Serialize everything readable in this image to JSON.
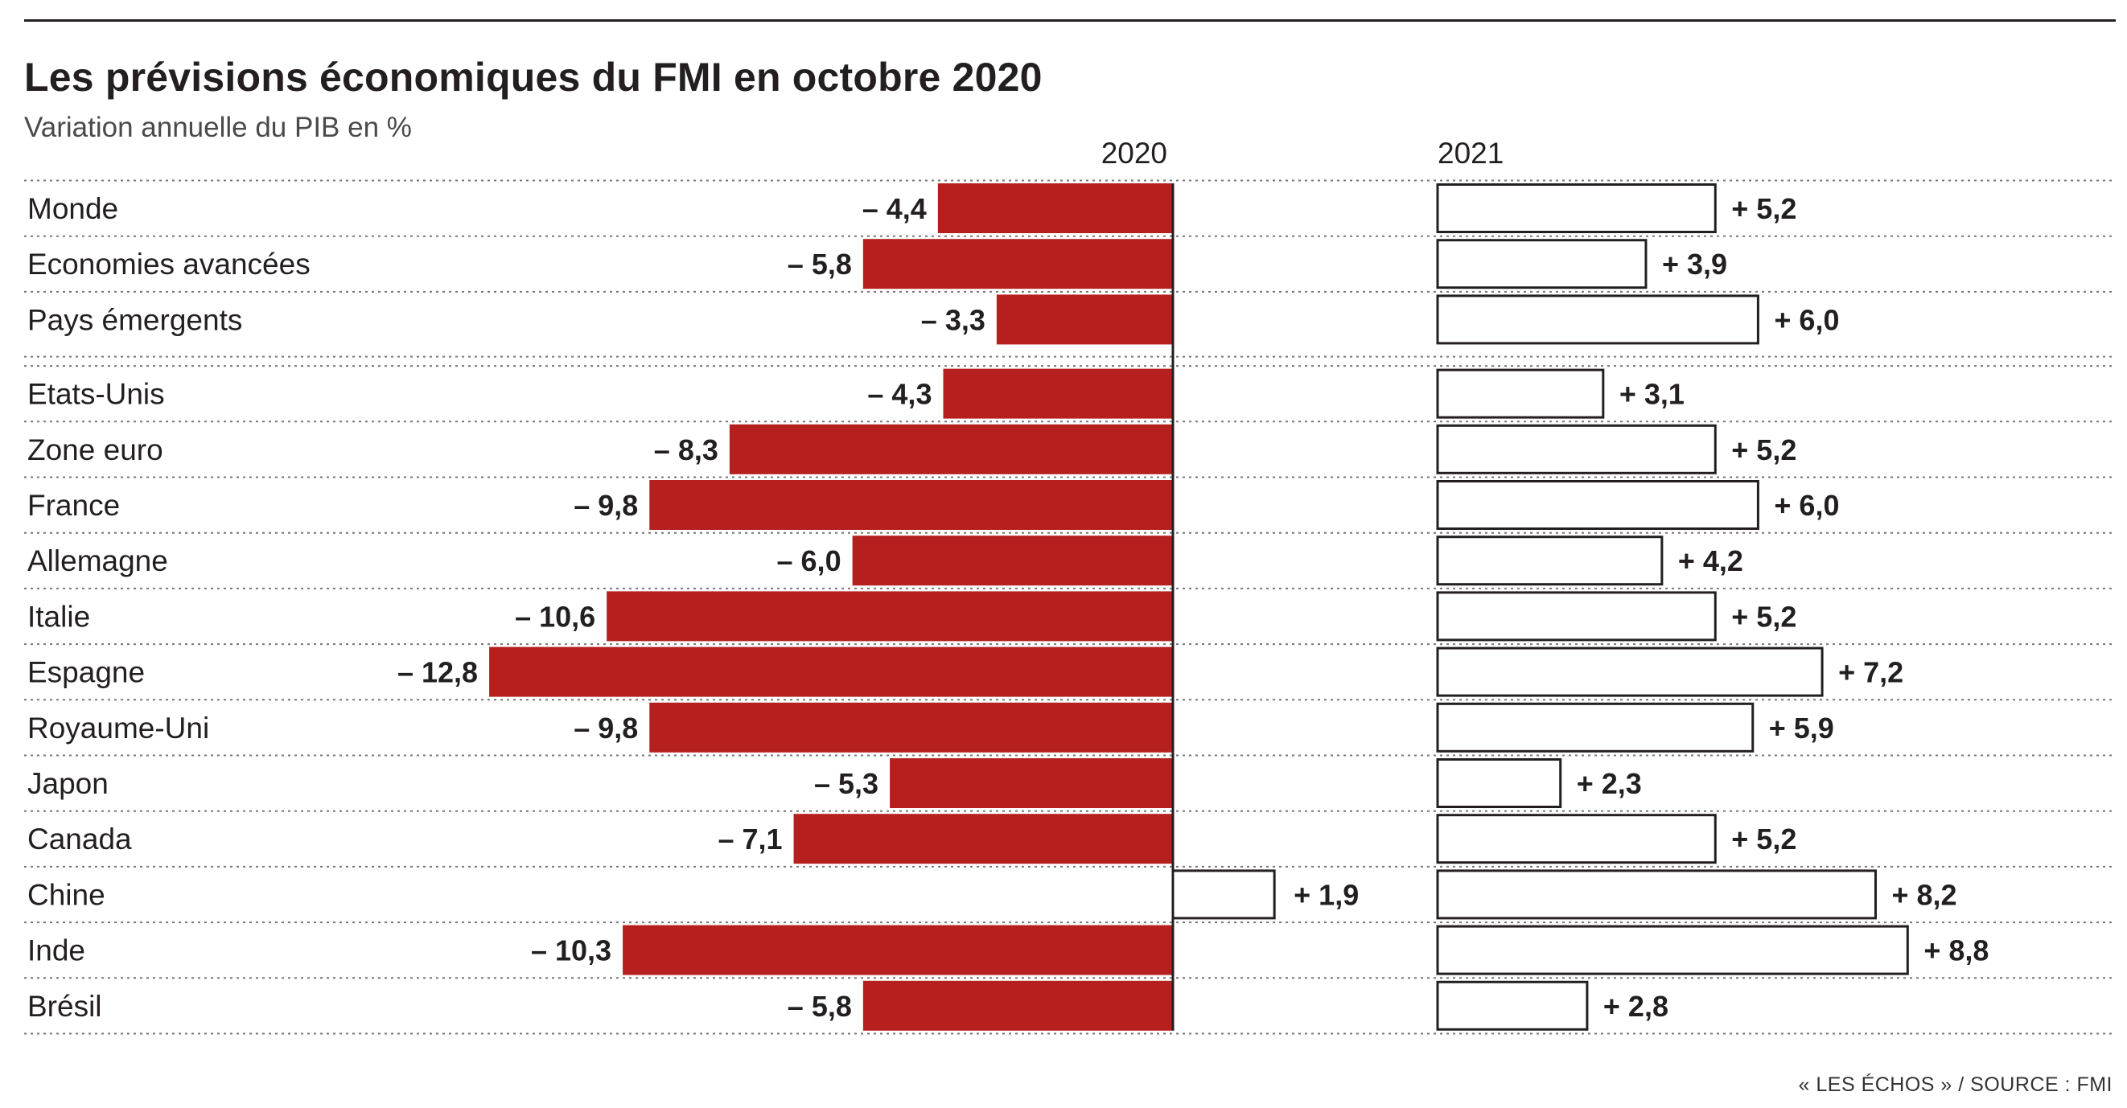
{
  "colors": {
    "bar_2020": "#b5201f",
    "bar_2021_fill": "#ffffff",
    "bar_outline": "#231f20",
    "text": "#231f20",
    "gridline": "#777777"
  },
  "chart_data": {
    "type": "bar",
    "orientation": "horizontal",
    "title": "Les prévisions économiques du FMI en octobre 2020",
    "subtitle": "Variation annuelle du PIB en %",
    "source": "« LES ÉCHOS » / SOURCE : FMI",
    "categories": [
      "Monde",
      "Economies avancées",
      "Pays émergents",
      "Etats-Unis",
      "Zone euro",
      "France",
      "Allemagne",
      "Italie",
      "Espagne",
      "Royaume-Uni",
      "Japon",
      "Canada",
      "Chine",
      "Inde",
      "Brésil"
    ],
    "groups": [
      3,
      12
    ],
    "series": [
      {
        "name": "2020",
        "values": [
          -4.4,
          -5.8,
          -3.3,
          -4.3,
          -8.3,
          -9.8,
          -6.0,
          -10.6,
          -12.8,
          -9.8,
          -5.3,
          -7.1,
          1.9,
          -10.3,
          -5.8
        ],
        "labels": [
          "– 4,4",
          "– 5,8",
          "– 3,3",
          "– 4,3",
          "– 8,3",
          "– 9,8",
          "– 6,0",
          "– 10,6",
          "– 12,8",
          "– 9,8",
          "– 5,3",
          "– 7,1",
          "+ 1,9",
          "– 10,3",
          "– 5,8"
        ]
      },
      {
        "name": "2021",
        "values": [
          5.2,
          3.9,
          6.0,
          3.1,
          5.2,
          6.0,
          4.2,
          5.2,
          7.2,
          5.9,
          2.3,
          5.2,
          8.2,
          8.8,
          2.8
        ],
        "labels": [
          "+ 5,2",
          "+ 3,9",
          "+ 6,0",
          "+ 3,1",
          "+ 5,2",
          "+ 6,0",
          "+ 4,2",
          "+ 5,2",
          "+ 7,2",
          "+ 5,9",
          "+ 2,3",
          "+ 5,2",
          "+ 8,2",
          "+ 8,8",
          "+ 2,8"
        ]
      }
    ],
    "grid": "dotted lines between rows",
    "legend": "panel headers"
  }
}
